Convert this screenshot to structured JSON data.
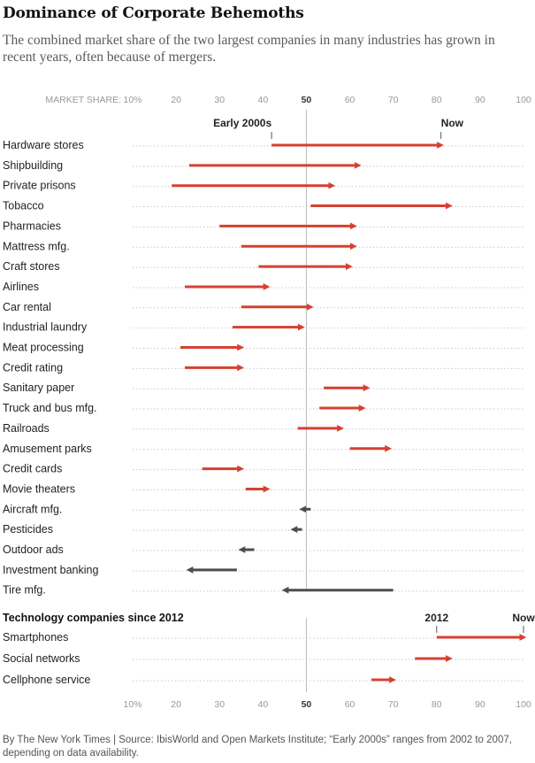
{
  "title": "Dominance of Corporate Behemoths",
  "subtitle": "The combined market share of the two largest companies in many industries has grown in recent years, often because of mergers.",
  "footer": "By The New York Times | Source: IbisWorld and Open Markets Institute; “Early 2000s” ranges from 2002 to 2007, depending on data availability.",
  "colors": {
    "increase": "#d7402f",
    "decrease": "#4d4d4d",
    "axis": "#999999",
    "grid": "#c8c8c8",
    "fifty": "#bbbbbb"
  },
  "chart_data": [
    {
      "type": "dumbbell-arrow",
      "title": "",
      "axis_top_prefix": "MARKET SHARE:",
      "ticks": [
        10,
        20,
        30,
        40,
        50,
        60,
        70,
        80,
        90,
        100
      ],
      "tick_labels": [
        "10%",
        "20",
        "30",
        "40",
        "50",
        "60",
        "70",
        "80",
        "90",
        "100"
      ],
      "xlim": [
        10,
        100
      ],
      "start_label": "Early 2000s",
      "end_label": "Now",
      "rows": [
        {
          "label": "Hardware stores",
          "start": 42,
          "end": 81
        },
        {
          "label": "Shipbuilding",
          "start": 23,
          "end": 62
        },
        {
          "label": "Private prisons",
          "start": 19,
          "end": 56
        },
        {
          "label": "Tobacco",
          "start": 51,
          "end": 83
        },
        {
          "label": "Pharmacies",
          "start": 30,
          "end": 61
        },
        {
          "label": "Mattress mfg.",
          "start": 35,
          "end": 61
        },
        {
          "label": "Craft stores",
          "start": 39,
          "end": 60
        },
        {
          "label": "Airlines",
          "start": 22,
          "end": 41
        },
        {
          "label": "Car rental",
          "start": 35,
          "end": 51
        },
        {
          "label": "Industrial laundry",
          "start": 33,
          "end": 49
        },
        {
          "label": "Meat processing",
          "start": 21,
          "end": 35
        },
        {
          "label": "Credit rating",
          "start": 22,
          "end": 35
        },
        {
          "label": "Sanitary paper",
          "start": 54,
          "end": 64
        },
        {
          "label": "Truck and bus mfg.",
          "start": 53,
          "end": 63
        },
        {
          "label": "Railroads",
          "start": 48,
          "end": 58
        },
        {
          "label": "Amusement parks",
          "start": 60,
          "end": 69
        },
        {
          "label": "Credit cards",
          "start": 26,
          "end": 35
        },
        {
          "label": "Movie theaters",
          "start": 36,
          "end": 41
        },
        {
          "label": "Aircraft mfg.",
          "start": 51,
          "end": 49
        },
        {
          "label": "Pesticides",
          "start": 49,
          "end": 47
        },
        {
          "label": "Outdoor ads",
          "start": 38,
          "end": 35
        },
        {
          "label": "Investment banking",
          "start": 34,
          "end": 23
        },
        {
          "label": "Tire mfg.",
          "start": 70,
          "end": 45
        }
      ]
    },
    {
      "type": "dumbbell-arrow",
      "title": "Technology companies since 2012",
      "ticks": [
        10,
        20,
        30,
        40,
        50,
        60,
        70,
        80,
        90,
        100
      ],
      "tick_labels": [
        "10%",
        "20",
        "30",
        "40",
        "50",
        "60",
        "70",
        "80",
        "90",
        "100"
      ],
      "xlim": [
        10,
        100
      ],
      "start_label": "2012",
      "end_label": "Now",
      "rows": [
        {
          "label": "Smartphones",
          "start": 80,
          "end": 100
        },
        {
          "label": "Social networks",
          "start": 75,
          "end": 83
        },
        {
          "label": "Cellphone service",
          "start": 65,
          "end": 70
        }
      ]
    }
  ]
}
